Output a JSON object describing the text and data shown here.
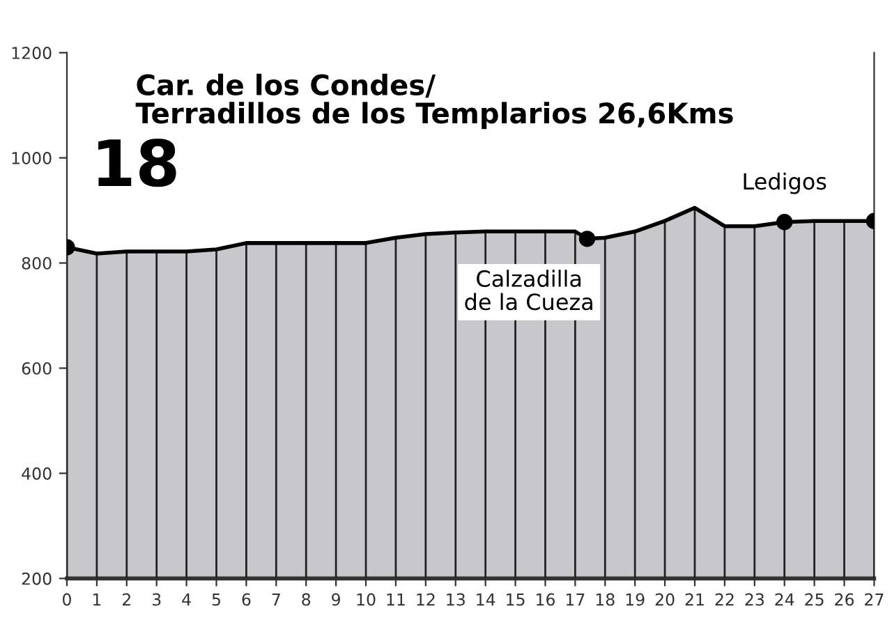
{
  "chart_data": {
    "type": "area",
    "title": "Car. de los Condes/\nTerradillos de los Templarios 26,6Kms",
    "x": [
      0,
      1,
      2,
      3,
      4,
      5,
      6,
      7,
      8,
      9,
      10,
      11,
      12,
      13,
      14,
      15,
      16,
      17,
      17.4,
      18,
      19,
      20,
      21,
      22,
      23,
      24,
      25,
      26,
      27
    ],
    "series": [
      {
        "color": "#c8c8cc",
        "values": [
          830,
          818,
          822,
          822,
          822,
          826,
          838,
          838,
          838,
          838,
          838,
          848,
          855,
          858,
          860,
          860,
          860,
          860,
          846,
          848,
          860,
          880,
          905,
          870,
          870,
          878,
          880,
          880,
          880
        ]
      },
      {
        "type": "scatter",
        "color": "#000000",
        "marker": "circle",
        "x": [
          0,
          17.4,
          24,
          27
        ],
        "values": [
          830,
          846,
          878,
          880
        ]
      }
    ],
    "annotations": [
      "18",
      {
        "text": "Calzadilla\nde la Cueza",
        "x": 17.4,
        "y": 846
      },
      {
        "text": "Ledigos",
        "x": 24,
        "y": 878
      }
    ],
    "xlim": [
      0,
      27
    ],
    "ylim": [
      200,
      1200
    ],
    "xticks": [
      0,
      1,
      2,
      3,
      4,
      5,
      6,
      7,
      8,
      9,
      10,
      11,
      12,
      13,
      14,
      15,
      16,
      17,
      18,
      19,
      20,
      21,
      22,
      23,
      24,
      25,
      26,
      27
    ],
    "yticks": [
      200,
      400,
      600,
      800,
      1000,
      1200
    ],
    "grid": "x"
  }
}
